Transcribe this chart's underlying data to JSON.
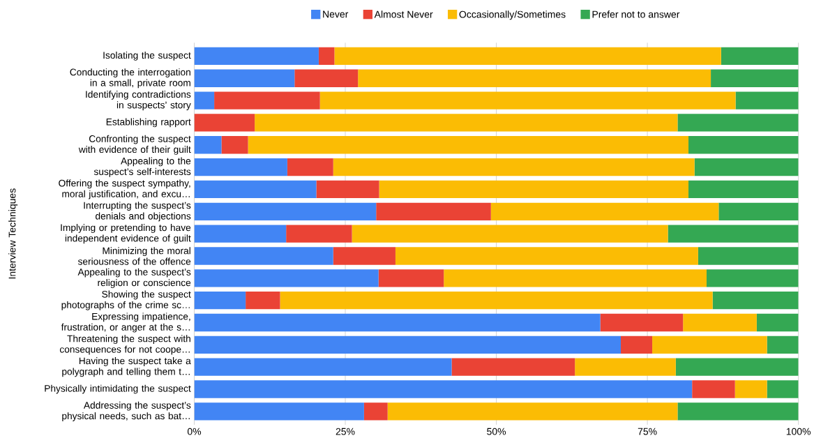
{
  "chart_data": {
    "type": "bar",
    "orientation": "horizontal",
    "stacked": true,
    "ylabel": "Interview Techniques",
    "categories": [
      "Isolating the suspect",
      "Conducting the interrogation in a small, private room",
      "Identifying contradictions in suspects’ story",
      "Establishing rapport",
      "Confronting the suspect with evidence of their guilt",
      "Appealing to the suspect’s self-interests",
      "Offering the suspect sympathy, moral justification, and excu…",
      "Interrupting the suspect’s denials and objections",
      "Implying or pretending to have independent evidence of guilt",
      "Minimizing the moral seriousness of the offence",
      "Appealing to the suspect’s religion or conscience",
      "Showing the suspect photographs of the crime sc…",
      "Expressing impatience, frustration, or anger at the s…",
      "Threatening the suspect with consequences for not coope…",
      "Having the suspect take a polygraph and telling them t…",
      "Physically intimidating the suspect",
      "Addressing the suspect’s physical needs, such as bat…"
    ],
    "series": [
      {
        "name": "Never",
        "color": "#4285f4",
        "values": [
          20.6,
          16.6,
          3.3,
          0,
          4.5,
          15.4,
          20.2,
          30.1,
          15.2,
          23.0,
          30.5,
          8.5,
          67.2,
          70.6,
          42.6,
          82.4,
          28.1
        ]
      },
      {
        "name": "Almost Never",
        "color": "#ea4335",
        "values": [
          2.6,
          10.5,
          17.5,
          10.0,
          4.4,
          7.6,
          10.4,
          19.0,
          10.9,
          10.3,
          10.8,
          5.7,
          13.7,
          5.2,
          20.4,
          7.1,
          3.9
        ]
      },
      {
        "name": "Occasionally/Sometimes",
        "color": "#fbbc04",
        "values": [
          64.0,
          58.4,
          68.8,
          70.0,
          72.9,
          59.8,
          51.2,
          37.7,
          52.3,
          50.1,
          43.5,
          71.6,
          12.2,
          19.0,
          16.7,
          5.3,
          48.0
        ]
      },
      {
        "name": "Prefer not to answer",
        "color": "#34a853",
        "values": [
          12.8,
          14.5,
          10.4,
          20.0,
          18.2,
          17.2,
          18.2,
          13.2,
          21.6,
          16.6,
          15.2,
          14.2,
          6.9,
          5.2,
          20.3,
          5.2,
          20.0
        ]
      }
    ],
    "xlim": [
      0,
      100
    ],
    "xticks": [
      {
        "value": 0,
        "label": "0%"
      },
      {
        "value": 25,
        "label": "25%"
      },
      {
        "value": 50,
        "label": "50%"
      },
      {
        "value": 75,
        "label": "75%"
      },
      {
        "value": 100,
        "label": "100%"
      }
    ],
    "grid": "x",
    "legend": "top"
  }
}
